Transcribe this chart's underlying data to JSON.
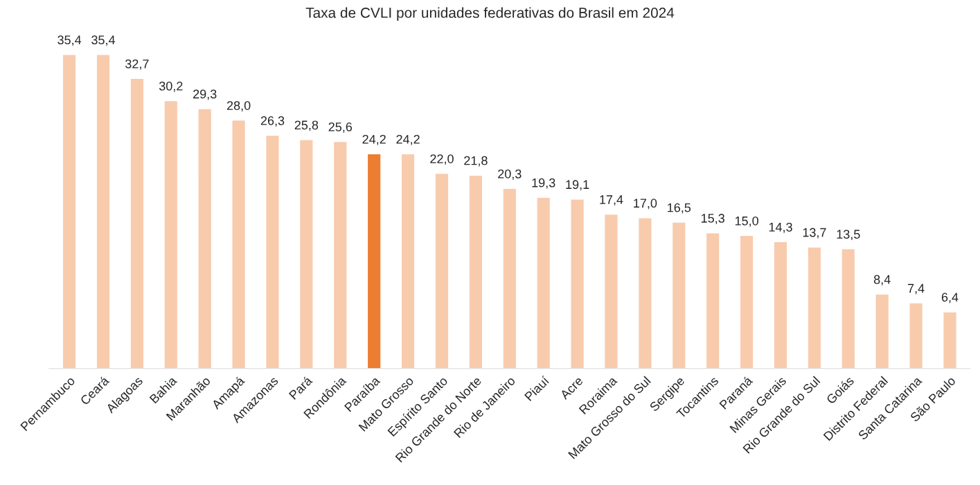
{
  "chart_data": {
    "type": "bar",
    "title": "Taxa de CVLI por unidades federativas do Brasil em 2024",
    "categories": [
      "Pernambuco",
      "Ceará",
      "Alagoas",
      "Bahia",
      "Maranhão",
      "Amapá",
      "Amazonas",
      "Pará",
      "Rondônia",
      "Paraíba",
      "Mato Grosso",
      "Espírito Santo",
      "Rio Grande do Norte",
      "Rio de Janeiro",
      "Piauí",
      "Acre",
      "Roraima",
      "Mato Grosso do Sul",
      "Sergipe",
      "Tocantins",
      "Paraná",
      "Minas Gerais",
      "Rio Grande do Sul",
      "Goiás",
      "Distrito Federal",
      "Santa Catarina",
      "São Paulo"
    ],
    "values": [
      35.4,
      35.4,
      32.7,
      30.2,
      29.3,
      28.0,
      26.3,
      25.8,
      25.6,
      24.2,
      24.2,
      22.0,
      21.8,
      20.3,
      19.3,
      19.1,
      17.4,
      17.0,
      16.5,
      15.3,
      15.0,
      14.3,
      13.7,
      13.5,
      8.4,
      7.4,
      6.4
    ],
    "value_labels": [
      "35,4",
      "35,4",
      "32,7",
      "30,2",
      "29,3",
      "28,0",
      "26,3",
      "25,8",
      "25,6",
      "24,2",
      "24,2",
      "22,0",
      "21,8",
      "20,3",
      "19,3",
      "19,1",
      "17,4",
      "17,0",
      "16,5",
      "15,3",
      "15,0",
      "14,3",
      "13,7",
      "13,5",
      "8,4",
      "7,4",
      "6,4"
    ],
    "colors": [
      "#f8cbad",
      "#f8cbad",
      "#f8cbad",
      "#f8cbad",
      "#f8cbad",
      "#f8cbad",
      "#f8cbad",
      "#f8cbad",
      "#f8cbad",
      "#ed7d31",
      "#f8cbad",
      "#f8cbad",
      "#f8cbad",
      "#f8cbad",
      "#f8cbad",
      "#f8cbad",
      "#f8cbad",
      "#f8cbad",
      "#f8cbad",
      "#f8cbad",
      "#f8cbad",
      "#f8cbad",
      "#f8cbad",
      "#f8cbad",
      "#f8cbad",
      "#f8cbad",
      "#f8cbad"
    ],
    "grid": false,
    "legend": false
  }
}
